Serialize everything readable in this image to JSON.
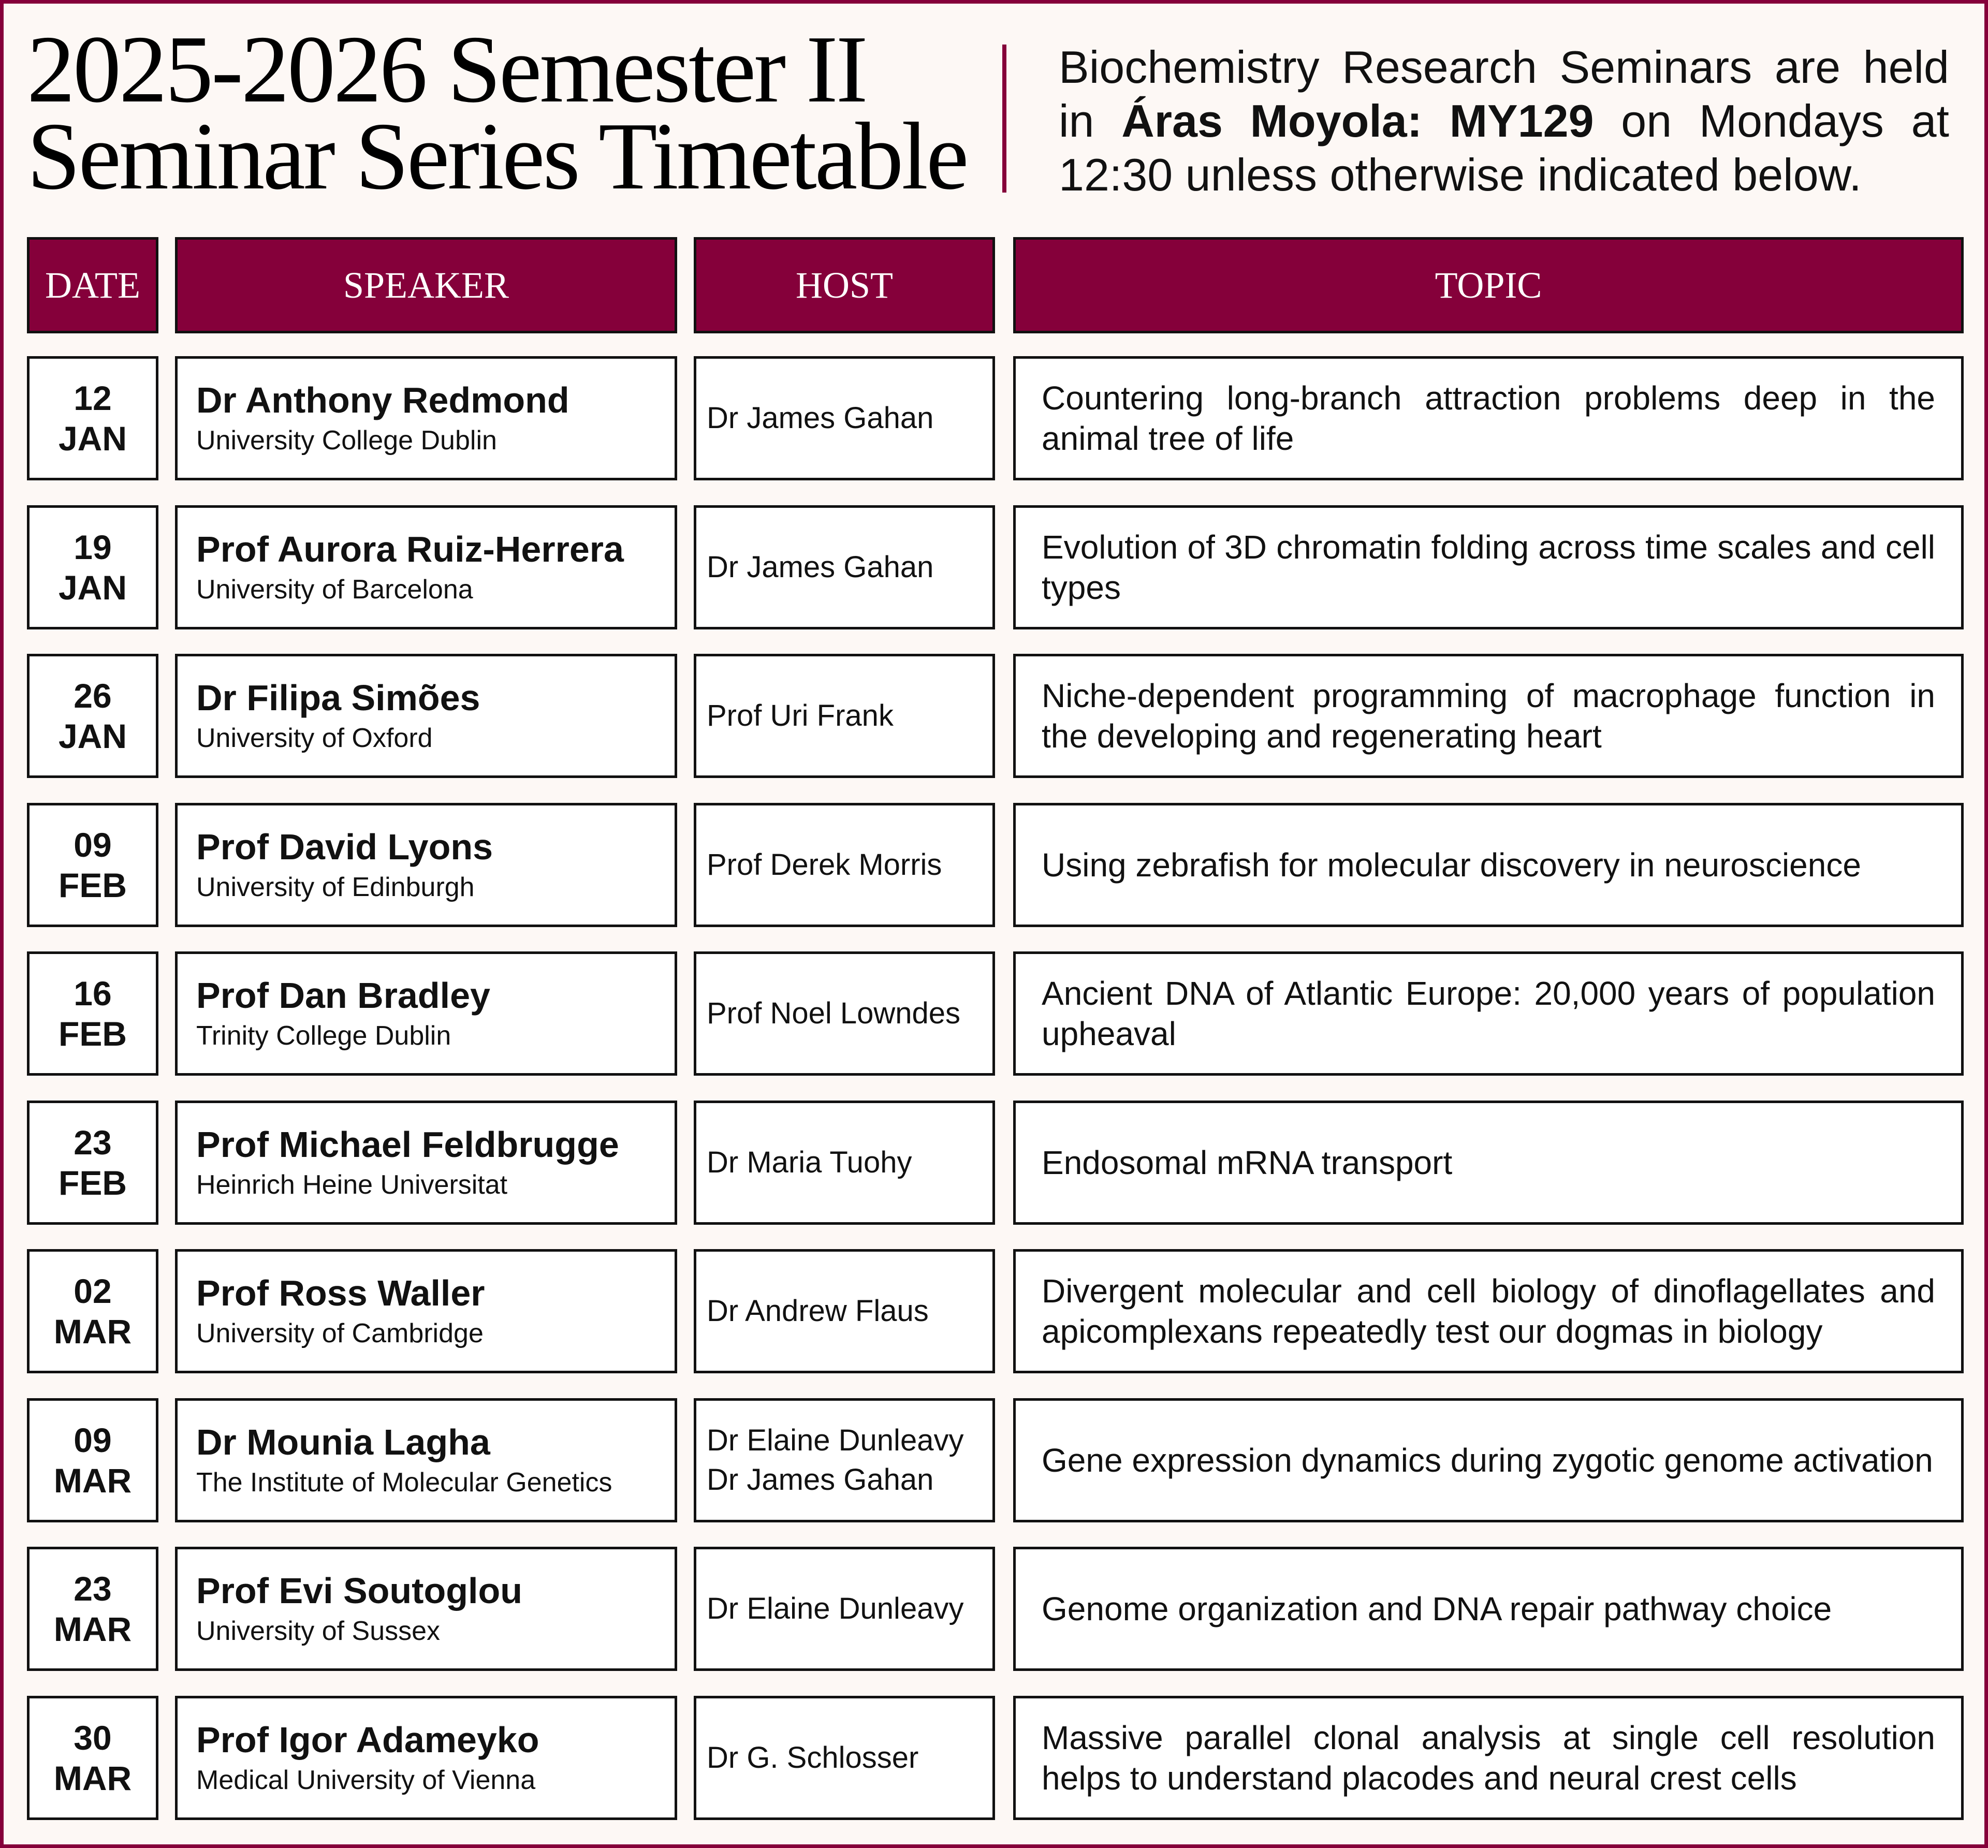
{
  "header": {
    "title_line1": "2025-2026 Semester II",
    "title_line2": "Seminar Series Timetable",
    "intro_prefix": "Biochemistry Research Seminars are held in",
    "intro_location": "Áras Moyola: MY129",
    "intro_suffix": "on Mondays at 12:30 unless otherwise indicated below."
  },
  "colors": {
    "accent": "#85003a",
    "background": "#fdf8f5"
  },
  "table": {
    "columns": [
      "DATE",
      "SPEAKER",
      "HOST",
      "TOPIC"
    ],
    "rows": [
      {
        "day": "12",
        "month": "JAN",
        "speaker": "Dr Anthony Redmond",
        "affiliation": "University College Dublin",
        "host": [
          "Dr James Gahan"
        ],
        "topic": "Countering long-branch attraction problems deep in the animal tree of life"
      },
      {
        "day": "19",
        "month": "JAN",
        "speaker": "Prof Aurora Ruiz-Herrera",
        "affiliation": "University of Barcelona",
        "host": [
          "Dr James Gahan"
        ],
        "topic": "Evolution of 3D chromatin folding across time scales and cell types"
      },
      {
        "day": "26",
        "month": "JAN",
        "speaker": "Dr Filipa Simões",
        "affiliation": "University of Oxford",
        "host": [
          "Prof Uri Frank"
        ],
        "topic": "Niche-dependent programming of macrophage function in the developing and regenerating heart"
      },
      {
        "day": "09",
        "month": "FEB",
        "speaker": "Prof David Lyons",
        "affiliation": "University of Edinburgh",
        "host": [
          "Prof Derek Morris"
        ],
        "topic": "Using zebrafish for molecular discovery in neuroscience"
      },
      {
        "day": "16",
        "month": "FEB",
        "speaker": "Prof Dan Bradley",
        "affiliation": "Trinity College Dublin",
        "host": [
          "Prof Noel Lowndes"
        ],
        "topic": "Ancient DNA of Atlantic Europe: 20,000 years of population upheaval"
      },
      {
        "day": "23",
        "month": "FEB",
        "speaker": "Prof Michael Feldbrugge",
        "affiliation": "Heinrich Heine Universitat",
        "host": [
          "Dr Maria Tuohy"
        ],
        "topic": "Endosomal mRNA transport"
      },
      {
        "day": "02",
        "month": "MAR",
        "speaker": "Prof Ross Waller",
        "affiliation": "University of Cambridge",
        "host": [
          "Dr Andrew Flaus"
        ],
        "topic": "Divergent molecular and cell biology of dinoflagellates and apicomplexans repeatedly test our dogmas in biology"
      },
      {
        "day": "09",
        "month": "MAR",
        "speaker": "Dr Mounia Lagha",
        "affiliation": "The Institute of Molecular Genetics",
        "host": [
          "Dr Elaine Dunleavy",
          "Dr James Gahan"
        ],
        "topic": "Gene expression dynamics during zygotic genome activation"
      },
      {
        "day": "23",
        "month": "MAR",
        "speaker": "Prof Evi Soutoglou",
        "affiliation": "University of Sussex",
        "host": [
          "Dr Elaine Dunleavy"
        ],
        "topic": "Genome organization and DNA repair pathway choice"
      },
      {
        "day": "30",
        "month": "MAR",
        "speaker": "Prof Igor Adameyko",
        "affiliation": "Medical University of Vienna",
        "host": [
          "Dr G. Schlosser"
        ],
        "topic": "Massive parallel clonal analysis at single cell resolution helps to understand placodes and neural crest cells"
      }
    ]
  }
}
